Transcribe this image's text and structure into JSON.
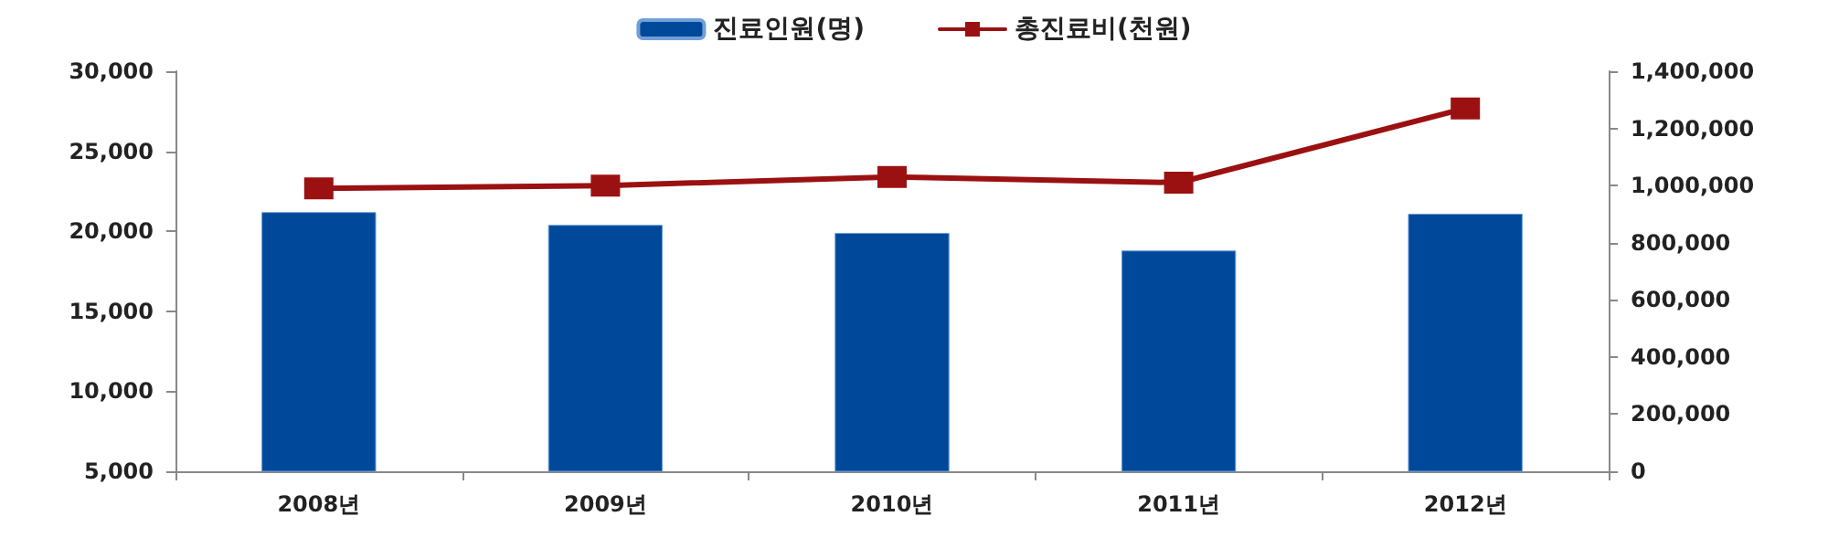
{
  "chart_data": {
    "type": "bar",
    "categories": [
      "2008년",
      "2009년",
      "2010년",
      "2011년",
      "2012년"
    ],
    "series": [
      {
        "name": "진료인원(명)",
        "color": "#00499a",
        "values": [
          21200,
          20400,
          19900,
          18800,
          21100
        ]
      },
      {
        "name": "총진료비(천원)",
        "type": "line",
        "axis": "y2",
        "color": "#9b1111",
        "marker": "square",
        "values": [
          990000,
          1000000,
          1030000,
          1010000,
          1270000
        ]
      }
    ],
    "ylim": [
      5000,
      30000
    ],
    "yticks": [
      {
        "value": 5000,
        "label": "5,000"
      },
      {
        "value": 10000,
        "label": "10,000"
      },
      {
        "value": 15000,
        "label": "15,000"
      },
      {
        "value": 20000,
        "label": "20,000"
      },
      {
        "value": 25000,
        "label": "25,000"
      },
      {
        "value": 30000,
        "label": "30,000"
      }
    ],
    "y2lim": [
      0,
      1400000
    ],
    "y2ticks": [
      0,
      {
        "value": 200000,
        "label": "200,000"
      },
      {
        "value": 400000,
        "label": "400,000"
      },
      {
        "value": 600000,
        "label": "600,000"
      },
      {
        "value": 800000,
        "label": "800,000"
      },
      {
        "value": 1000000,
        "label": "1,000,000"
      },
      {
        "value": 1200000,
        "label": "1,200,000"
      },
      {
        "value": 1400000,
        "label": "1,400,000"
      }
    ],
    "grid": false,
    "legend": "top"
  }
}
